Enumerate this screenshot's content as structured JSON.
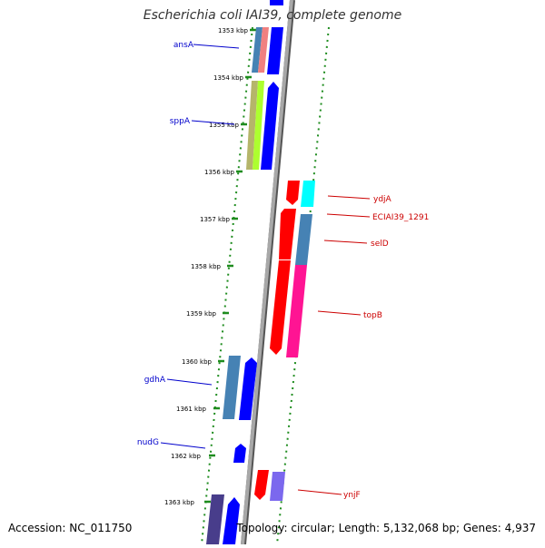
{
  "title": "Escherichia coli IAI39, complete genome",
  "accession": "Accession: NC_011750",
  "topology": "Topology: circular; Length: 5,132,068 bp; Genes: 4,937",
  "ticks": [
    "1353 kbp",
    "1354 kbp",
    "1355 kbp",
    "1356 kbp",
    "1357 kbp",
    "1358 kbp",
    "1359 kbp",
    "1360 kbp",
    "1361 kbp",
    "1362 kbp",
    "1363 kbp"
  ],
  "genes_forward_label_color": "#0000cc",
  "genes_reverse_label_color": "#cc0000",
  "gene_labels": {
    "ansA": "ansA",
    "sppA": "sppA",
    "gdhA": "gdhA",
    "nudG": "nudG",
    "ydjA": "ydjA",
    "eciai": "ECIAI39_1291",
    "selD": "selD",
    "topB": "topB",
    "ynjF": "ynjF"
  },
  "colors": {
    "backbone": "#9a9a9a",
    "dots": "#1e8c1e",
    "blue": "#0000ff",
    "steelblue": "#4682b4",
    "red": "#ff0000",
    "pink": "#ff1493",
    "cyan": "#00ffff",
    "salmon": "#f08080",
    "olive": "#b5b56a",
    "lime": "#adff2f",
    "purple": "#7b68ee",
    "darkslate": "#483d8b"
  }
}
